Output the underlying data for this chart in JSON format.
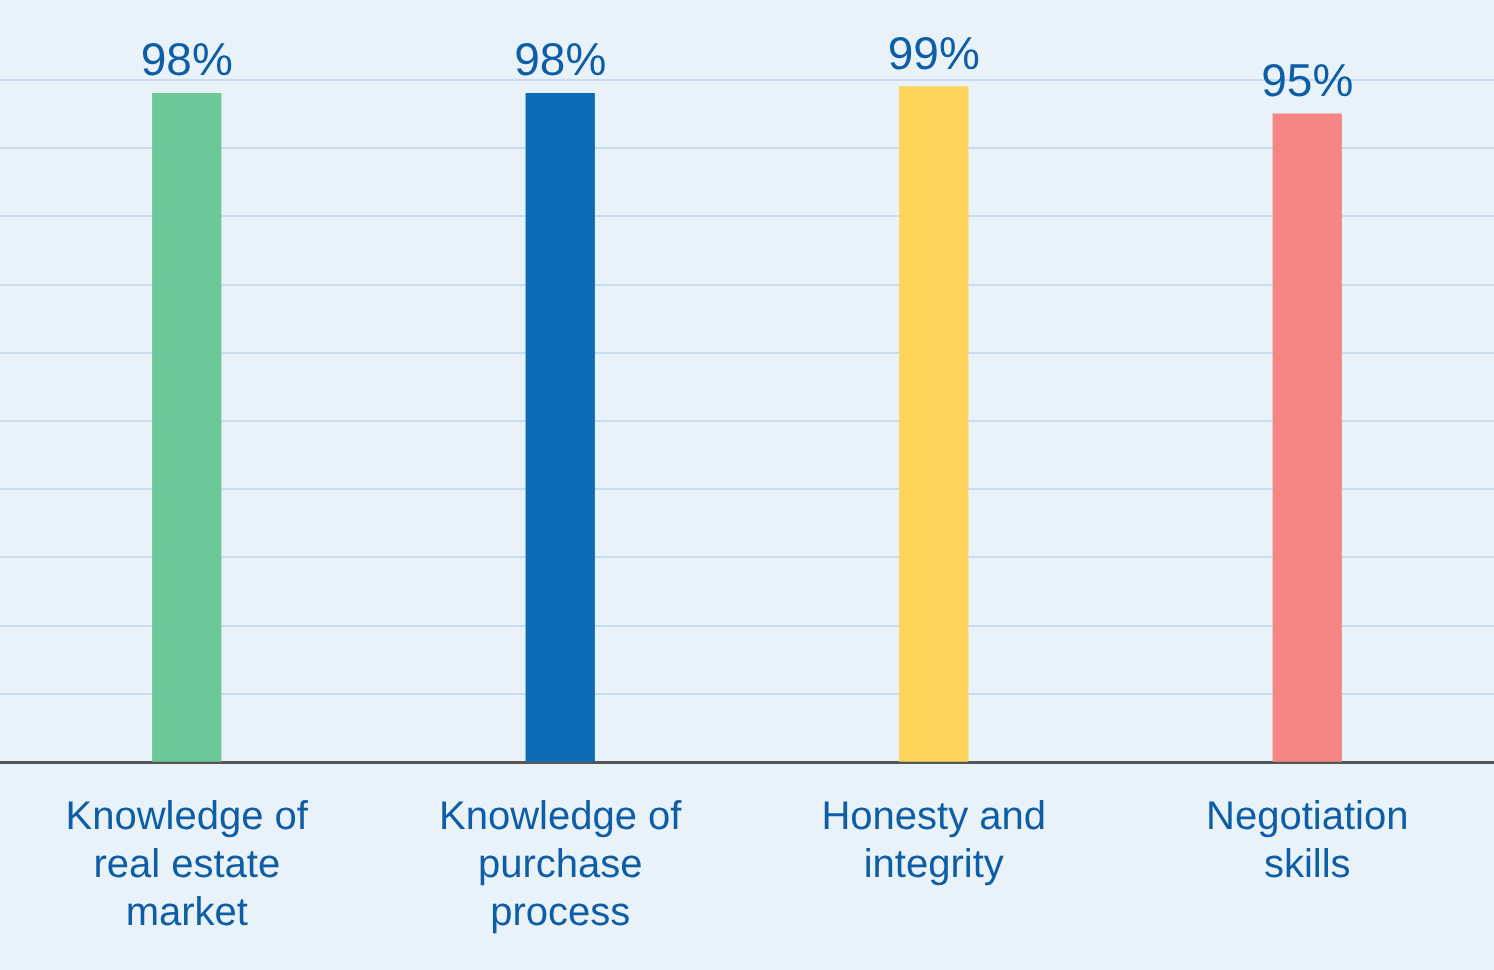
{
  "chart_data": {
    "type": "bar",
    "categories": [
      "Knowledge of real estate market",
      "Knowledge of purchase process",
      "Honesty and integrity",
      "Negotiation skills"
    ],
    "values": [
      98,
      98,
      99,
      95
    ],
    "colors": [
      "#6cc799",
      "#0b6cb5",
      "#fed45b",
      "#f48784"
    ],
    "value_labels": [
      "98%",
      "98%",
      "99%",
      "95%"
    ],
    "ylim": [
      0,
      100
    ],
    "yticks": [
      {
        "value": 0,
        "label": null
      },
      {
        "value": 10,
        "label": null
      },
      {
        "value": 20,
        "label": null
      },
      {
        "value": 30,
        "label": null
      },
      {
        "value": 40,
        "label": null
      },
      {
        "value": 50,
        "label": null
      },
      {
        "value": 60,
        "label": null
      },
      {
        "value": 70,
        "label": null
      },
      {
        "value": 80,
        "label": null
      },
      {
        "value": 90,
        "label": null
      },
      {
        "value": 100,
        "label": null
      }
    ],
    "grid": "y",
    "tick_labels": "x",
    "legend": false
  }
}
